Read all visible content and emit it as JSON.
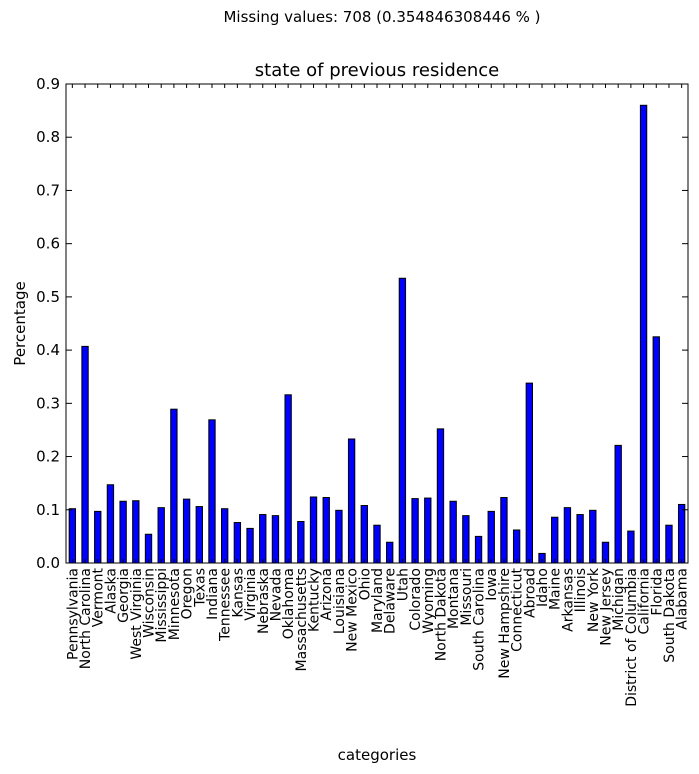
{
  "suptitle": "Missing values: 708 (0.354846308446 % )",
  "chart_data": {
    "type": "bar",
    "title": "state of previous residence",
    "xlabel": "categories",
    "ylabel": "Percentage",
    "ylim": [
      0,
      0.9
    ],
    "yticks": [
      "0.0",
      "0.1",
      "0.2",
      "0.3",
      "0.4",
      "0.5",
      "0.6",
      "0.7",
      "0.8",
      "0.9"
    ],
    "bar_color": "#0000ff",
    "grid": false,
    "categories": [
      "Pennsylvania",
      "North Carolina",
      "Vermont",
      "Alaska",
      "Georgia",
      "West Virginia",
      "Wisconsin",
      "Mississippi",
      "Minnesota",
      "Oregon",
      "Texas",
      "Indiana",
      "Tennessee",
      "Kansas",
      "Virginia",
      "Nebraska",
      "Nevada",
      "Oklahoma",
      "Massachusetts",
      "Kentucky",
      "Arizona",
      "Louisiana",
      "New Mexico",
      "Ohio",
      "Maryland",
      "Delaware",
      "Utah",
      "Colorado",
      "Wyoming",
      "North Dakota",
      "Montana",
      "Missouri",
      "South Carolina",
      "Iowa",
      "New Hampshire",
      "Connecticut",
      "Abroad",
      "Idaho",
      "Maine",
      "Arkansas",
      "Illinois",
      "New York",
      "New Jersey",
      "Michigan",
      "District of Columbia",
      "California",
      "Florida",
      "South Dakota",
      "Alabama"
    ],
    "values": [
      0.102,
      0.407,
      0.097,
      0.147,
      0.116,
      0.117,
      0.054,
      0.104,
      0.289,
      0.12,
      0.106,
      0.269,
      0.102,
      0.076,
      0.065,
      0.091,
      0.089,
      0.316,
      0.078,
      0.124,
      0.123,
      0.099,
      0.233,
      0.108,
      0.071,
      0.039,
      0.535,
      0.121,
      0.122,
      0.252,
      0.116,
      0.089,
      0.05,
      0.097,
      0.123,
      0.062,
      0.338,
      0.018,
      0.086,
      0.104,
      0.091,
      0.099,
      0.039,
      0.221,
      0.06,
      0.86,
      0.425,
      0.071,
      0.11
    ]
  }
}
